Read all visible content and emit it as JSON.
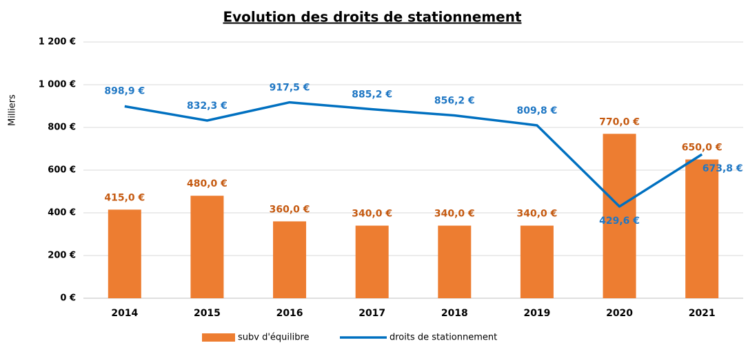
{
  "chart_data": {
    "type": "bar+line",
    "title": "Evolution des droits de stationnement",
    "y_label": "Milliers",
    "categories": [
      "2014",
      "2015",
      "2016",
      "2017",
      "2018",
      "2019",
      "2020",
      "2021"
    ],
    "series": [
      {
        "name": "subv d'équilibre",
        "type": "bar",
        "color": "#ED7D31",
        "label_color": "#C55A11",
        "values": [
          415,
          480,
          360,
          340,
          340,
          340,
          770,
          650
        ],
        "value_labels": [
          "415,0 €",
          "480,0 €",
          "360,0 €",
          "340,0 €",
          "340,0 €",
          "340,0 €",
          "770,0 €",
          "650,0 €"
        ]
      },
      {
        "name": "droits de stationnement",
        "type": "line",
        "color": "#0070C0",
        "label_color": "#1F77C4",
        "values": [
          898.9,
          832.3,
          917.5,
          885.2,
          856.2,
          809.8,
          429.6,
          673.8
        ],
        "value_labels": [
          "898,9 €",
          "832,3 €",
          "917,5 €",
          "885,2 €",
          "856,2 €",
          "809,8 €",
          "429,6 €",
          "673,8 €"
        ]
      }
    ],
    "ylim": [
      0,
      1200
    ],
    "yticks": [
      {
        "value": 0,
        "label": "0 €"
      },
      {
        "value": 200,
        "label": "200 €"
      },
      {
        "value": 400,
        "label": "400 €"
      },
      {
        "value": 600,
        "label": "600 €"
      },
      {
        "value": 800,
        "label": "800 €"
      },
      {
        "value": 1000,
        "label": "1 000 €"
      },
      {
        "value": 1200,
        "label": "1 200 €"
      }
    ],
    "grid": true,
    "legend": "bottom"
  }
}
